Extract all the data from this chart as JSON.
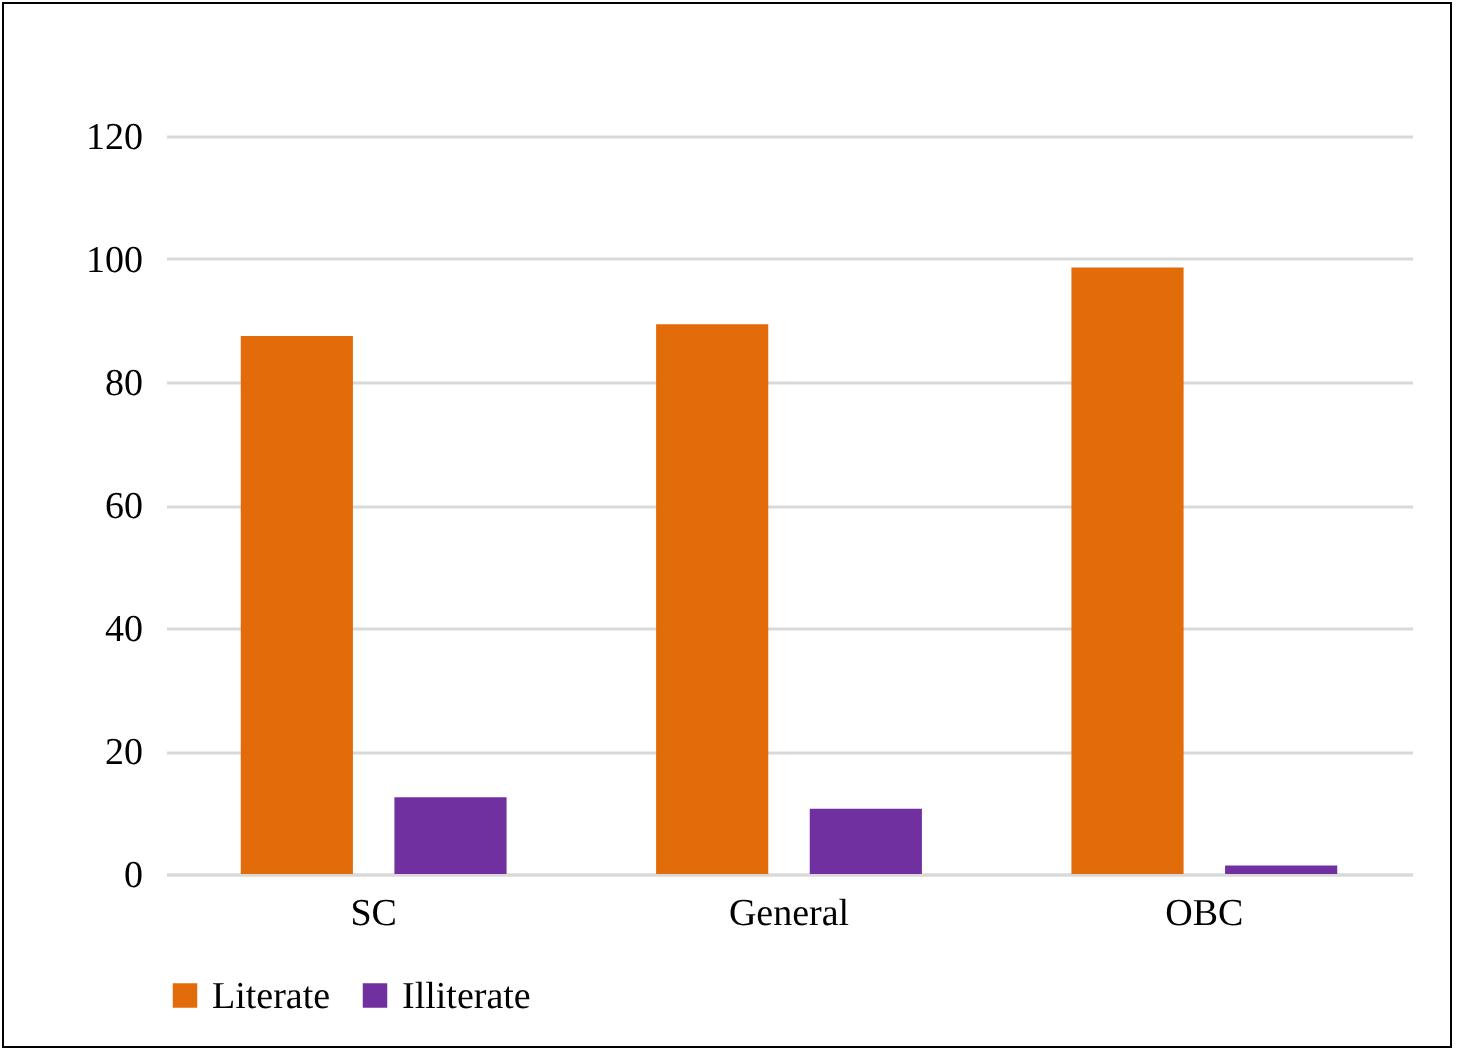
{
  "chart_data": {
    "type": "bar",
    "categories": [
      "SC",
      "General",
      "OBC"
    ],
    "series": [
      {
        "name": "Literate",
        "color": "#e36c0a",
        "values": [
          87.5,
          89.4,
          98.6
        ]
      },
      {
        "name": "Illiterate",
        "color": "#7030a0",
        "values": [
          12.5,
          10.6,
          1.4
        ]
      }
    ],
    "ylim": [
      0,
      120
    ],
    "yticks": [
      0,
      20,
      40,
      60,
      80,
      100,
      120
    ],
    "grid": "y",
    "legend": "bottom"
  }
}
